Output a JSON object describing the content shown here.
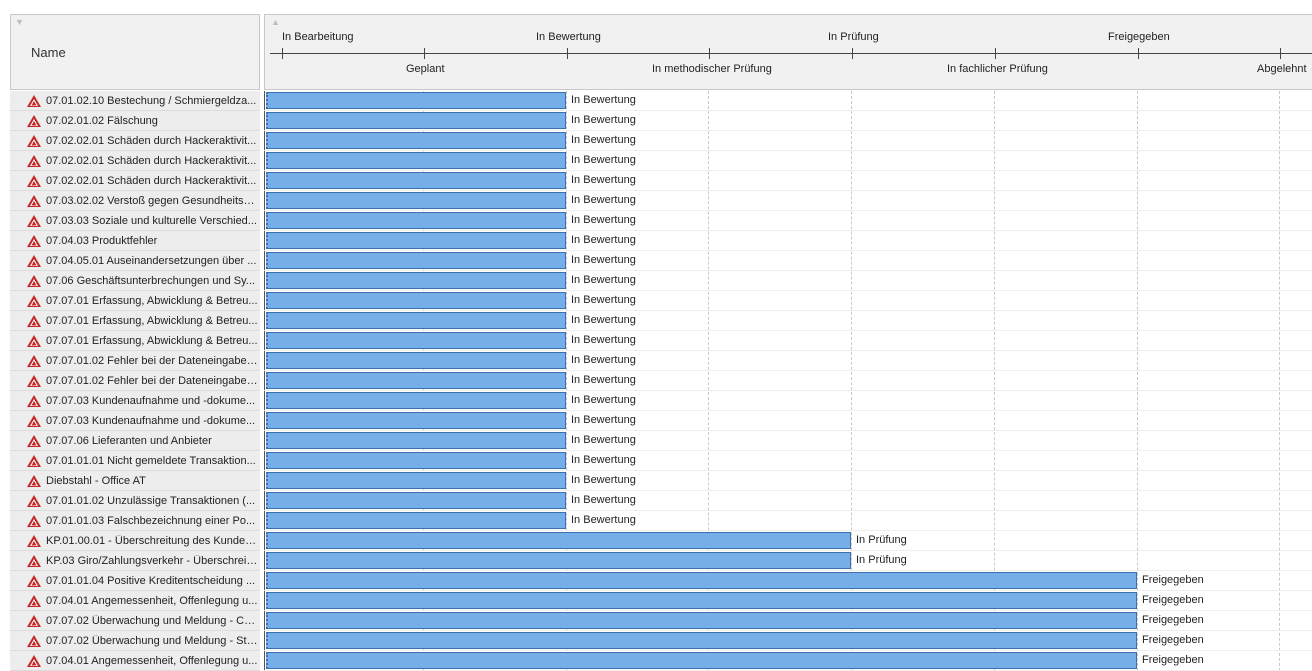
{
  "left_header": {
    "title": "Name",
    "sort_icon": "triangle-down-icon"
  },
  "timeline_header": {
    "sort_icon": "triangle-up-icon",
    "top_labels": [
      "In Bearbeitung",
      "In Bewertung",
      "In Prüfung",
      "Freigegeben"
    ],
    "bottom_labels": [
      "Geplant",
      "In methodischer Prüfung",
      "In fachlicher Prüfung",
      "Abgelehnt"
    ]
  },
  "colors": {
    "bar_fill": "#76aee8",
    "bar_border": "#3b6fae",
    "icon_red": "#c62828"
  },
  "rows": [
    {
      "name": "07.01.02.10 Bestechung / Schmiergeldza...",
      "status": "In Bewertung"
    },
    {
      "name": "07.02.01.02 Fälschung",
      "status": "In Bewertung"
    },
    {
      "name": "07.02.02.01 Schäden durch Hackeraktivit...",
      "status": "In Bewertung"
    },
    {
      "name": "07.02.02.01 Schäden durch Hackeraktivit...",
      "status": "In Bewertung"
    },
    {
      "name": "07.02.02.01 Schäden durch Hackeraktivit...",
      "status": "In Bewertung"
    },
    {
      "name": "07.03.02.02 Verstoß gegen Gesundheits- ...",
      "status": "In Bewertung"
    },
    {
      "name": "07.03.03 Soziale und kulturelle Verschied...",
      "status": "In Bewertung"
    },
    {
      "name": "07.04.03 Produktfehler",
      "status": "In Bewertung"
    },
    {
      "name": "07.04.05.01 Auseinandersetzungen über ...",
      "status": "In Bewertung"
    },
    {
      "name": "07.06 Geschäftsunterbrechungen und Sy...",
      "status": "In Bewertung"
    },
    {
      "name": "07.07.01 Erfassung, Abwicklung & Betreu...",
      "status": "In Bewertung"
    },
    {
      "name": "07.07.01 Erfassung, Abwicklung & Betreu...",
      "status": "In Bewertung"
    },
    {
      "name": "07.07.01 Erfassung, Abwicklung & Betreu...",
      "status": "In Bewertung"
    },
    {
      "name": "07.07.01.02 Fehler bei der Dateneingabe,...",
      "status": "In Bewertung"
    },
    {
      "name": "07.07.01.02 Fehler bei der Dateneingabe,...",
      "status": "In Bewertung"
    },
    {
      "name": "07.07.03 Kundenaufnahme und -dokume...",
      "status": "In Bewertung"
    },
    {
      "name": "07.07.03 Kundenaufnahme und -dokume...",
      "status": "In Bewertung"
    },
    {
      "name": "07.07.06 Lieferanten und Anbieter",
      "status": "In Bewertung"
    },
    {
      "name": "07.01.01.01 Nicht gemeldete Transaktion...",
      "status": "In Bewertung"
    },
    {
      "name": "Diebstahl - Office AT",
      "status": "In Bewertung"
    },
    {
      "name": "07.01.01.02 Unzulässige Transaktionen (...",
      "status": "In Bewertung"
    },
    {
      "name": "07.01.01.03 Falschbezeichnung einer Po...",
      "status": "In Bewertung"
    },
    {
      "name": "KP.01.00.01 - Überschreitung des Kunden...",
      "status": "In Prüfung"
    },
    {
      "name": "KP.03 Giro/Zahlungsverkehr - Überschreit...",
      "status": "In Prüfung"
    },
    {
      "name": "07.01.01.04 Positive Kreditentscheidung ...",
      "status": "Freigegeben"
    },
    {
      "name": "07.04.01 Angemessenheit, Offenlegung u...",
      "status": "Freigegeben"
    },
    {
      "name": "07.07.02 Überwachung und Meldung - Co...",
      "status": "Freigegeben"
    },
    {
      "name": "07.07.02 Überwachung und Meldung - Str...",
      "status": "Freigegeben"
    },
    {
      "name": "07.04.01 Angemessenheit, Offenlegung u...",
      "status": "Freigegeben"
    }
  ]
}
